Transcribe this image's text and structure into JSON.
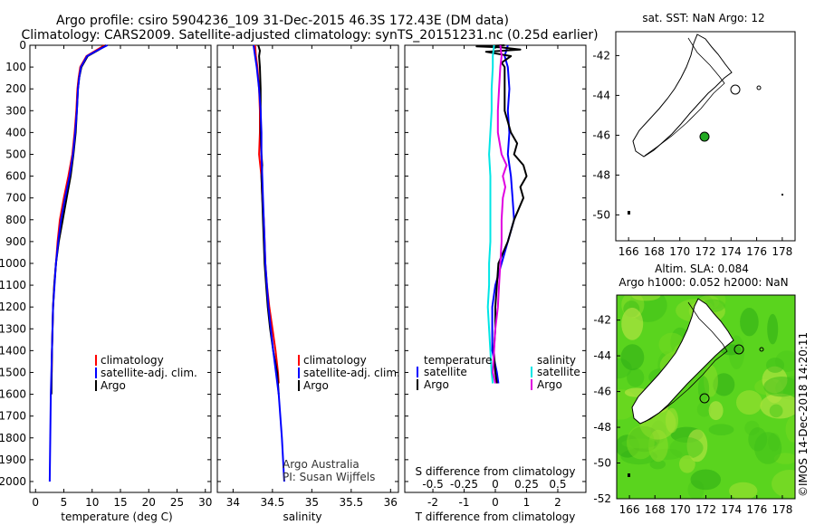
{
  "header": {
    "title_line1": "Argo profile: csiro 5904236_109 31-Dec-2015 46.3S 172.43E (DM data)",
    "title_line2": "Climatology: CARS2009. Satellite-adjusted climatology: synTS_20151231.nc (0.25d earlier)"
  },
  "colors": {
    "climatology": "#ff0000",
    "satellite": "#0000ff",
    "argo": "#000000",
    "sat_salinity": "#00e5e5",
    "argo_salinity": "#e000e0",
    "land": "#ffffff",
    "sla_field": "#5ad41e"
  },
  "chart_data": [
    {
      "type": "line",
      "name": "temperature-profile",
      "xlabel": "temperature (deg C)",
      "ylabel": "",
      "xlim": [
        -1,
        31
      ],
      "ylim": [
        2050,
        0
      ],
      "xticks": [
        "0",
        "5",
        "10",
        "15",
        "20",
        "25",
        "30"
      ],
      "yticks": [
        "0",
        "100",
        "200",
        "300",
        "400",
        "500",
        "600",
        "700",
        "800",
        "900",
        "1000",
        "1100",
        "1200",
        "1300",
        "1400",
        "1500",
        "1600",
        "1700",
        "1800",
        "1900",
        "2000"
      ],
      "legend": [
        "climatology",
        "satellite-adj. clim.",
        "Argo"
      ],
      "series": [
        {
          "name": "climatology",
          "depth": [
            0,
            25,
            50,
            100,
            150,
            200,
            300,
            400,
            500,
            600,
            700,
            800,
            900,
            1000,
            1100,
            1200,
            1300,
            1400,
            1500
          ],
          "values": [
            12.2,
            10.6,
            9.0,
            7.9,
            7.6,
            7.4,
            7.2,
            6.9,
            6.5,
            5.8,
            5.0,
            4.3,
            3.9,
            3.6,
            3.3,
            3.1,
            3.0,
            2.9,
            2.85
          ]
        },
        {
          "name": "satellite-adj. clim.",
          "depth": [
            0,
            25,
            50,
            100,
            150,
            200,
            300,
            400,
            500,
            600,
            700,
            800,
            900,
            1000,
            1200,
            1400,
            1600,
            1800,
            2000
          ],
          "values": [
            12.7,
            10.8,
            9.1,
            8.0,
            7.7,
            7.5,
            7.3,
            7.0,
            6.6,
            6.0,
            5.2,
            4.5,
            4.0,
            3.6,
            3.1,
            2.9,
            2.7,
            2.6,
            2.5
          ]
        },
        {
          "name": "Argo",
          "depth": [
            0,
            25,
            50,
            100,
            150,
            200,
            300,
            400,
            500,
            600,
            700,
            800,
            900,
            1000,
            1100,
            1200,
            1300,
            1400,
            1500,
            1600
          ],
          "values": [
            12.5,
            10.9,
            9.2,
            8.1,
            7.7,
            7.5,
            7.3,
            7.1,
            6.7,
            6.2,
            5.5,
            4.8,
            4.1,
            3.6,
            3.3,
            3.1,
            3.0,
            2.9,
            2.85,
            2.8
          ]
        }
      ]
    },
    {
      "type": "line",
      "name": "salinity-profile",
      "xlabel": "salinity",
      "xlim": [
        33.8,
        36.1
      ],
      "ylim": [
        2050,
        0
      ],
      "xticks": [
        "34",
        "34.5",
        "35",
        "35.5",
        "36"
      ],
      "legend": [
        "climatology",
        "satellite-adj. clim.",
        "Argo"
      ],
      "annotation": [
        "Argo Australia",
        "PI: Susan Wijffels"
      ],
      "series": [
        {
          "name": "climatology",
          "depth": [
            0,
            50,
            100,
            200,
            300,
            400,
            500,
            600,
            700,
            800,
            900,
            1000,
            1100,
            1200,
            1300,
            1400,
            1500,
            1550
          ],
          "values": [
            34.28,
            34.29,
            34.31,
            34.33,
            34.34,
            34.34,
            34.33,
            34.36,
            34.37,
            34.39,
            34.4,
            34.41,
            34.43,
            34.46,
            34.5,
            34.54,
            34.57,
            34.58
          ]
        },
        {
          "name": "satellite-adj. clim.",
          "depth": [
            0,
            50,
            100,
            200,
            300,
            400,
            500,
            600,
            700,
            800,
            900,
            1000,
            1200,
            1400,
            1600,
            1800,
            2000
          ],
          "values": [
            34.26,
            34.28,
            34.3,
            34.33,
            34.35,
            34.36,
            34.36,
            34.37,
            34.38,
            34.39,
            34.4,
            34.41,
            34.45,
            34.51,
            34.58,
            34.62,
            34.65
          ]
        },
        {
          "name": "Argo",
          "depth": [
            0,
            25,
            50,
            100,
            200,
            300,
            400,
            500,
            550,
            600,
            700,
            800,
            900,
            1000,
            1100,
            1200,
            1300,
            1400,
            1500,
            1600
          ],
          "values": [
            34.32,
            34.34,
            34.33,
            34.34,
            34.35,
            34.35,
            34.35,
            34.36,
            34.37,
            34.36,
            34.37,
            34.38,
            34.39,
            34.4,
            34.42,
            34.44,
            34.47,
            34.51,
            34.56,
            34.58
          ]
        }
      ]
    },
    {
      "type": "line",
      "name": "difference-profile",
      "xlabel": "T difference from climatology",
      "xlabel_top": "S difference from climatology",
      "xlim": [
        -2.9,
        2.9
      ],
      "ylim": [
        2050,
        0
      ],
      "xticks": [
        "-2",
        "-1",
        "0",
        "1",
        "2"
      ],
      "xticks_s": [
        "-0.5",
        "-0.25",
        "0",
        "0.25",
        "0.5"
      ],
      "legend_titles": [
        "temperature",
        "salinity"
      ],
      "legend": [
        "satellite",
        "Argo",
        "satellite",
        "Argo"
      ],
      "series": [
        {
          "name": "T satellite",
          "depth": [
            0,
            50,
            100,
            200,
            300,
            400,
            500,
            600,
            700,
            800,
            900,
            1000,
            1100,
            1200,
            1300,
            1400,
            1500,
            1550
          ],
          "values": [
            0.4,
            0.3,
            0.4,
            0.45,
            0.4,
            0.45,
            0.4,
            0.5,
            0.55,
            0.6,
            0.4,
            0.2,
            0.0,
            -0.1,
            -0.1,
            -0.1,
            0.05,
            0.1
          ]
        },
        {
          "name": "T Argo",
          "depth": [
            0,
            5,
            10,
            20,
            30,
            50,
            80,
            100,
            150,
            200,
            300,
            400,
            450,
            500,
            550,
            600,
            650,
            700,
            800,
            900,
            1000,
            1100,
            1200,
            1300,
            1400,
            1500,
            1550
          ],
          "values": [
            0.3,
            -0.6,
            0.2,
            0.8,
            -0.3,
            0.5,
            0.2,
            0.3,
            0.3,
            0.3,
            0.3,
            0.5,
            0.7,
            0.6,
            0.9,
            1.0,
            0.8,
            0.9,
            0.6,
            0.4,
            0.1,
            0.05,
            0.0,
            0.0,
            -0.05,
            0.0,
            0.05
          ]
        },
        {
          "name": "S satellite",
          "depth": [
            0,
            50,
            100,
            200,
            300,
            400,
            500,
            600,
            700,
            800,
            900,
            1000,
            1100,
            1200,
            1300,
            1400,
            1500,
            1550
          ],
          "values": [
            -0.01,
            -0.02,
            -0.02,
            -0.03,
            -0.03,
            -0.04,
            -0.05,
            -0.04,
            -0.04,
            -0.04,
            -0.04,
            -0.05,
            -0.05,
            -0.06,
            -0.05,
            -0.04,
            -0.03,
            -0.02
          ]
        },
        {
          "name": "S Argo",
          "depth": [
            0,
            50,
            100,
            200,
            300,
            400,
            500,
            550,
            600,
            650,
            700,
            800,
            900,
            1000,
            1100,
            1200,
            1300,
            1400,
            1500,
            1550
          ],
          "values": [
            0.04,
            0.05,
            0.04,
            0.03,
            0.02,
            0.02,
            0.05,
            0.09,
            0.06,
            0.08,
            0.06,
            0.05,
            0.05,
            0.04,
            0.03,
            0.02,
            0.0,
            -0.01,
            -0.02,
            0.0
          ]
        }
      ]
    }
  ],
  "map_sst": {
    "title": "sat. SST: NaN Argo: 12",
    "lat_ticks": [
      "-42",
      "-44",
      "-46",
      "-48",
      "-50"
    ],
    "lon_ticks": [
      "166",
      "168",
      "170",
      "172",
      "174",
      "176",
      "178"
    ]
  },
  "map_sla": {
    "title_line1": "Altim. SLA: 0.084",
    "title_line2": "Argo h1000: 0.052 h2000: NaN",
    "lat_ticks": [
      "-42",
      "-44",
      "-46",
      "-48",
      "-50",
      "-52"
    ],
    "lon_ticks": [
      "166",
      "168",
      "170",
      "172",
      "174",
      "176",
      "178"
    ]
  },
  "credit": "©IMOS 14-Dec-2018 14:20:11"
}
